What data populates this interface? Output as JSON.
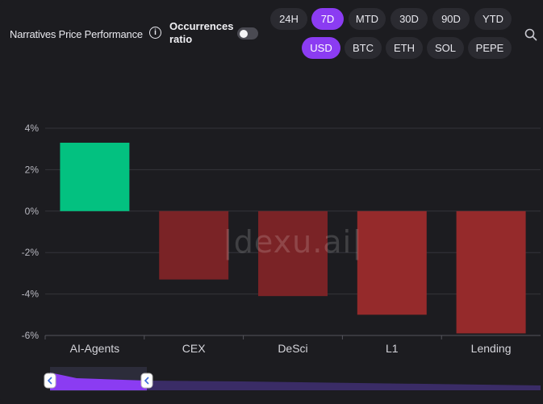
{
  "header": {
    "title": "Narratives Price Performance",
    "info_icon": "info-icon",
    "occurrences_label_1": "Occurrences",
    "occurrences_label_2": "ratio",
    "occurrences_toggle_on": false
  },
  "timeframes": [
    {
      "label": "24H",
      "active": false
    },
    {
      "label": "7D",
      "active": true
    },
    {
      "label": "MTD",
      "active": false
    },
    {
      "label": "30D",
      "active": false
    },
    {
      "label": "90D",
      "active": false
    },
    {
      "label": "YTD",
      "active": false
    }
  ],
  "currencies": [
    {
      "label": "USD",
      "active": true
    },
    {
      "label": "BTC",
      "active": false
    },
    {
      "label": "ETH",
      "active": false
    },
    {
      "label": "SOL",
      "active": false
    },
    {
      "label": "PEPE",
      "active": false
    }
  ],
  "search_icon": "search-icon",
  "watermark": "|dexu.ai|",
  "colors": {
    "accent": "#8b3cf2",
    "positive": "#03c180",
    "negative": "#9b2a2a"
  },
  "chart_data": {
    "type": "bar",
    "categories": [
      "AI-Agents",
      "CEX",
      "DeSci",
      "L1",
      "Lending"
    ],
    "values": [
      3.3,
      -3.3,
      -4.1,
      -5.0,
      -5.9
    ],
    "ylim": [
      -6,
      4
    ],
    "yticks": [
      "4%",
      "2%",
      "0%",
      "-2%",
      "-4%",
      "-6%"
    ],
    "ytick_values": [
      4,
      2,
      0,
      -2,
      -4,
      -6
    ],
    "grid": true
  }
}
